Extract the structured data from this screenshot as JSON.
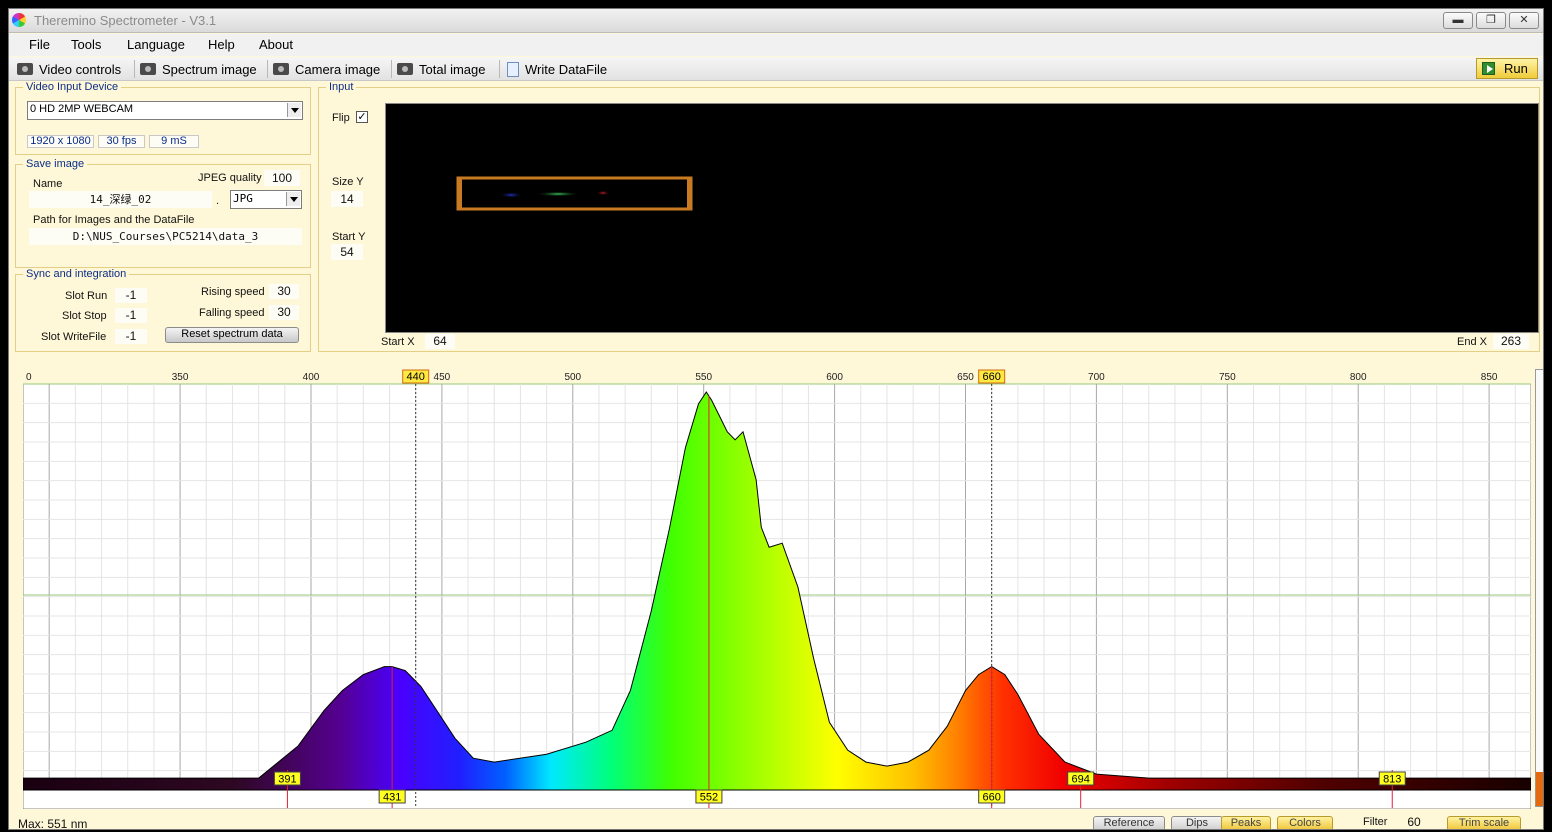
{
  "window": {
    "title": "Theremino Spectrometer - V3.1",
    "controls": {
      "minimize": "▬",
      "restore": "❐",
      "close": "✕"
    }
  },
  "menu": [
    "File",
    "Tools",
    "Language",
    "Help",
    "About"
  ],
  "toolbar": {
    "video_controls": "Video controls",
    "spectrum_image": "Spectrum image",
    "camera_image": "Camera image",
    "total_image": "Total image",
    "write_datafile": "Write DataFile",
    "run": "Run"
  },
  "video_input": {
    "title": "Video Input Device",
    "device": "0 HD 2MP WEBCAM",
    "resolution": "1920 x 1080",
    "fps": "30 fps",
    "exposure": "9 mS"
  },
  "save_image": {
    "title": "Save image",
    "name_label": "Name",
    "name_value": "14_深绿_02",
    "dot": ".",
    "jpeg_quality_label": "JPEG quality",
    "jpeg_quality": "100",
    "format": "JPG",
    "path_label": "Path for Images and the DataFile",
    "path": "D:\\NUS_Courses\\PC5214\\data_3"
  },
  "sync": {
    "title": "Sync and integration",
    "slot_run_label": "Slot Run",
    "slot_run": "-1",
    "slot_stop_label": "Slot Stop",
    "slot_stop": "-1",
    "slot_writefile_label": "Slot WriteFile",
    "slot_writefile": "-1",
    "rising_speed_label": "Rising speed",
    "rising_speed": "30",
    "falling_speed_label": "Falling speed",
    "falling_speed": "30",
    "reset_button": "Reset spectrum data"
  },
  "input": {
    "title": "Input",
    "flip_label": "Flip",
    "flip_checked": "✓",
    "size_y_label": "Size Y",
    "size_y": "14",
    "start_y_label": "Start Y",
    "start_y": "54",
    "start_x_label": "Start X",
    "start_x": "64",
    "end_x_label": "End X",
    "end_x": "263"
  },
  "spectrum": {
    "axis_ticks": [
      "0",
      "350",
      "400",
      "450",
      "500",
      "550",
      "600",
      "650",
      "700",
      "750",
      "800",
      "850"
    ],
    "wl_min": 290,
    "wl_max": 866,
    "markers": {
      "left": "440",
      "right": "660"
    },
    "peak_labels": [
      "391",
      "431",
      "552",
      "660",
      "694",
      "813"
    ],
    "chart_data": {
      "type": "area",
      "x_unit": "nm",
      "xlim": [
        290,
        866
      ],
      "ylim": [
        0,
        1
      ],
      "peaks_nm": [
        391,
        431,
        552,
        660,
        694,
        813
      ],
      "cursor_lines_nm": [
        440,
        660
      ],
      "max_nm": 551,
      "x": [
        290,
        380,
        395,
        405,
        412,
        420,
        428,
        431,
        436,
        442,
        448,
        455,
        462,
        470,
        490,
        505,
        515,
        522,
        530,
        537,
        543,
        548,
        551,
        553,
        556,
        559,
        562,
        565,
        570,
        572,
        575,
        580,
        586,
        592,
        598,
        605,
        612,
        620,
        628,
        636,
        643,
        650,
        655,
        660,
        665,
        670,
        678,
        688,
        700,
        720,
        760,
        800,
        866
      ],
      "y": [
        0.03,
        0.03,
        0.11,
        0.2,
        0.25,
        0.29,
        0.31,
        0.31,
        0.3,
        0.26,
        0.2,
        0.13,
        0.08,
        0.07,
        0.09,
        0.12,
        0.15,
        0.25,
        0.45,
        0.66,
        0.86,
        0.97,
        1.0,
        0.98,
        0.94,
        0.9,
        0.88,
        0.9,
        0.78,
        0.66,
        0.61,
        0.62,
        0.51,
        0.33,
        0.17,
        0.1,
        0.07,
        0.06,
        0.07,
        0.1,
        0.16,
        0.25,
        0.29,
        0.31,
        0.29,
        0.24,
        0.14,
        0.07,
        0.04,
        0.03,
        0.03,
        0.03,
        0.03
      ]
    }
  },
  "status": {
    "max": "Max: 551 nm",
    "reference": "Reference",
    "dips": "Dips",
    "peaks": "Peaks",
    "colors": "Colors",
    "filter_label": "Filter",
    "filter": "60",
    "trim_scale": "Trim scale"
  }
}
